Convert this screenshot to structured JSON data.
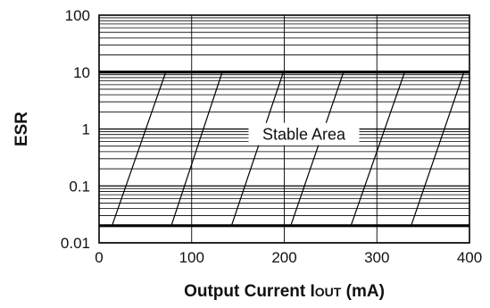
{
  "chart_data": {
    "type": "area",
    "xlabel": "Output Current I",
    "xlabel_sub": "OUT",
    "xlabel_unit": " (mA)",
    "ylabel": "ESR",
    "xlim": [
      0,
      400
    ],
    "ylim": [
      0.01,
      100
    ],
    "yscale": "log",
    "x_ticks": [
      0,
      100,
      200,
      300,
      400
    ],
    "x_tick_labels": [
      "0",
      "100",
      "200",
      "300",
      "400"
    ],
    "y_ticks": [
      0.01,
      0.1,
      1,
      10,
      100
    ],
    "y_tick_labels": [
      "0.01",
      "0.1",
      "1",
      "10",
      "100"
    ],
    "grid": "log minor horizontal lines, major vertical lines",
    "region": {
      "label": "Stable Area",
      "x": [
        0,
        400
      ],
      "esr_min": 0.02,
      "esr_max": 10,
      "hatch_lines": [
        {
          "x_bottom": 14,
          "x_top": 72
        },
        {
          "x_bottom": 78,
          "x_top": 133
        },
        {
          "x_bottom": 143,
          "x_top": 199
        },
        {
          "x_bottom": 207,
          "x_top": 264
        },
        {
          "x_bottom": 272,
          "x_top": 330
        },
        {
          "x_bottom": 337,
          "x_top": 394
        }
      ]
    },
    "annotations": [
      {
        "text": "Stable Area",
        "x": 200,
        "y": 0.8
      }
    ]
  }
}
